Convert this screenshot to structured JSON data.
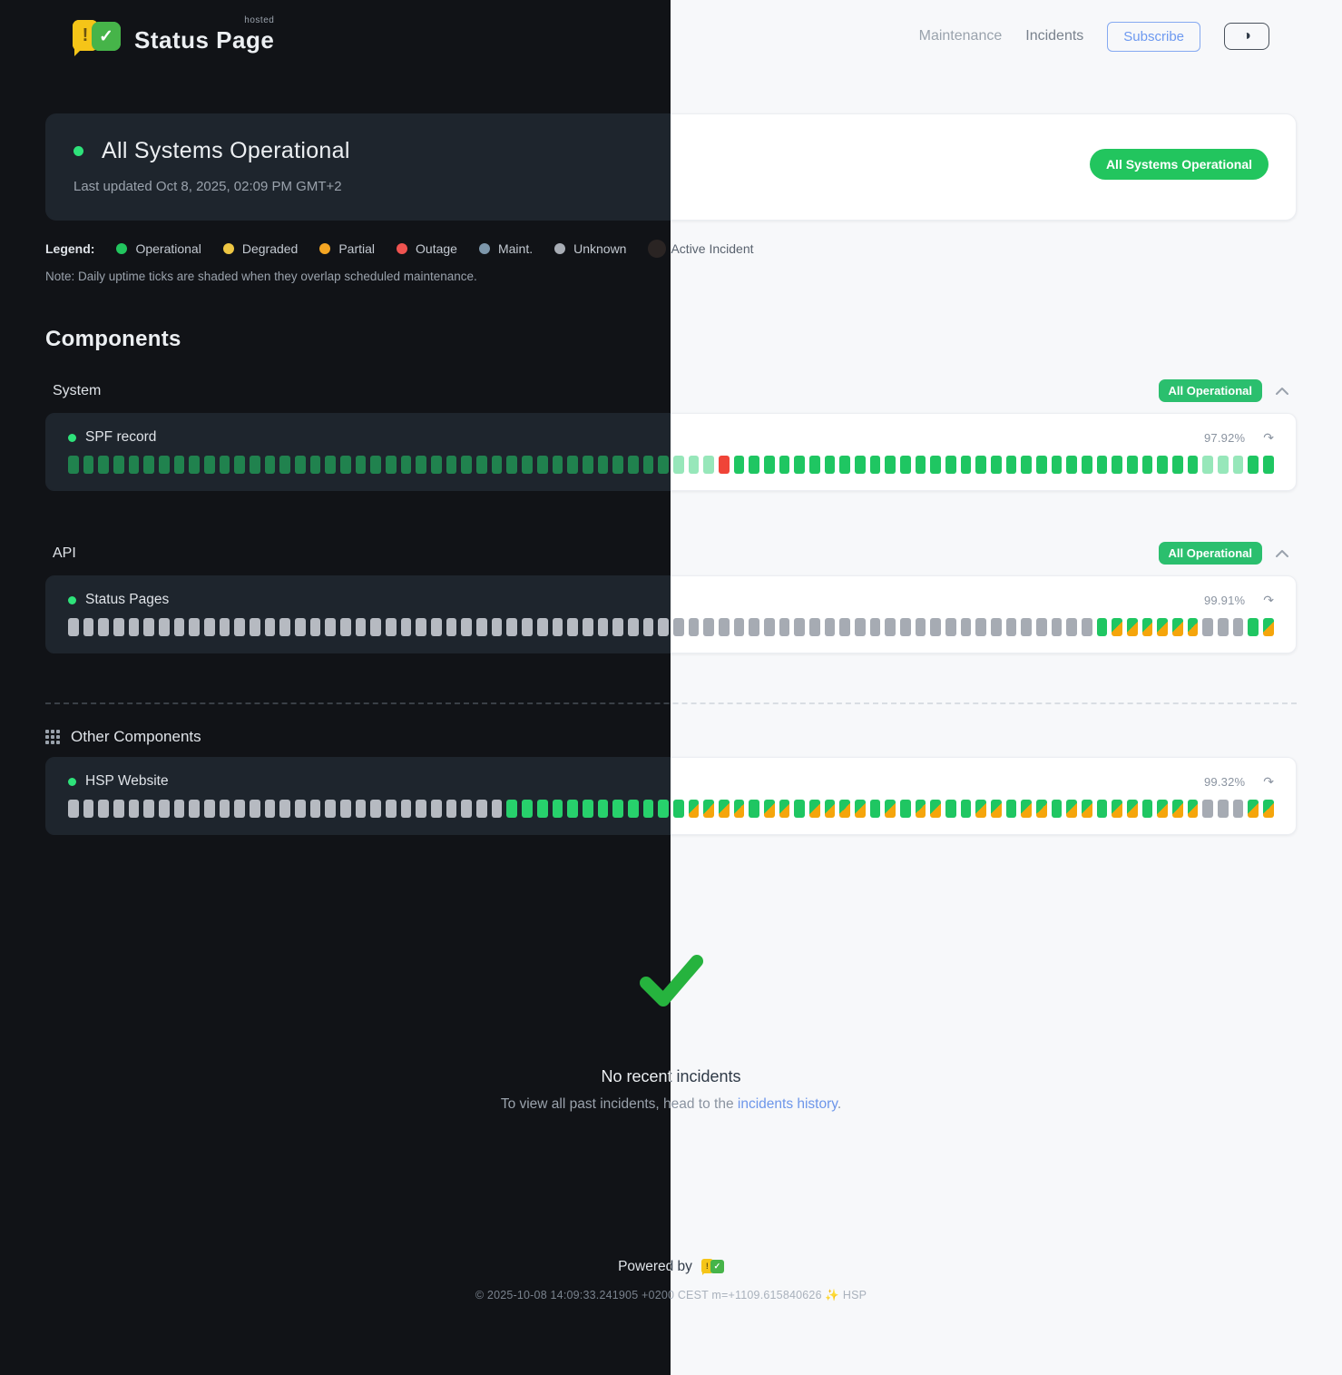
{
  "brand": {
    "name": "Status Page",
    "hosted": "hosted",
    "logo_exclaim": "!",
    "logo_check": "✓"
  },
  "header": {
    "nav": [
      {
        "label": "Maintenance"
      },
      {
        "label": "Incidents"
      }
    ],
    "subscribe_label": "Subscribe",
    "theme_toggle_icon": "◑"
  },
  "banner": {
    "title": "All Systems Operational",
    "last_updated": "Last updated Oct 8, 2025, 02:09 PM GMT+2",
    "badge": "All Systems Operational"
  },
  "legend": {
    "label": "Legend:",
    "items": [
      {
        "label": "Operational",
        "color": "#22c55e"
      },
      {
        "label": "Degraded",
        "color": "#eec643"
      },
      {
        "label": "Partial",
        "color": "#f5a623"
      },
      {
        "label": "Outage",
        "color": "#ef5350"
      },
      {
        "label": "Maint.",
        "color": "#7d97ab"
      },
      {
        "label": "Unknown",
        "color": "#a8adb5"
      },
      {
        "label": "Active Incident",
        "color": "#2a2423"
      }
    ],
    "note": "Note: Daily uptime ticks are shaded when they overlap scheduled maintenance."
  },
  "components": {
    "title": "Components",
    "groups": [
      {
        "name": "System",
        "badge": "All Operational",
        "rows": [
          {
            "name": "SPF record",
            "uptime": "97.92%",
            "ticks": "lllllllllllllllllllllllllllllllllllllllllllrggggggggggggggggggggggggggggggglllgg"
          }
        ]
      },
      {
        "name": "API",
        "badge": "All Operational",
        "rows": [
          {
            "name": "Status Pages",
            "uptime": "99.91%",
            "ticks": "uuuuuuuuuuuuuuuuuuuuuuuuuuuuuuuuuuuuuuuuuuuuuuuuuuuuuuuuuuuuuuuuuuuugmmmmmmuuugm"
          }
        ]
      }
    ],
    "other": {
      "title": "Other Components",
      "rows": [
        {
          "name": "HSP Website",
          "uptime": "99.32%",
          "ticks": "uuuuuuuuuuuuuuuuuuuuuuuuuuuuuggggggggggggmmmmgmmgmmmmgmgmmggmmgmmgmmgmmgmmmuuumm"
        }
      ]
    }
  },
  "tick_legend_codes": {
    "g": "operational",
    "l": "operational-faded",
    "r": "outage",
    "u": "unknown",
    "m": "maintenance-shaded"
  },
  "incidents": {
    "title": "No recent incidents",
    "subtitle_prefix": "To view all past incidents, head to the ",
    "link_label": "incidents history",
    "subtitle_suffix": "."
  },
  "footer": {
    "powered_by": "Powered by",
    "copyright": "© 2025-10-08 14:09:33.241905 +0200 CEST m=+1109.615840626 ✨ HSP"
  },
  "icons": {
    "refresh": "↷"
  },
  "colors": {
    "accent_green": "#22c55e",
    "badge_green": "#2bbf6e",
    "outage_red": "#f04438",
    "maintenance_orange": "#f5a50b",
    "link_blue": "#6d96ea",
    "subscribe_blue": "#6d99f0",
    "dark_bg": "#111317",
    "dark_card": "#1e252d",
    "light_bg": "#f7f8fa",
    "light_card": "#ffffff"
  }
}
